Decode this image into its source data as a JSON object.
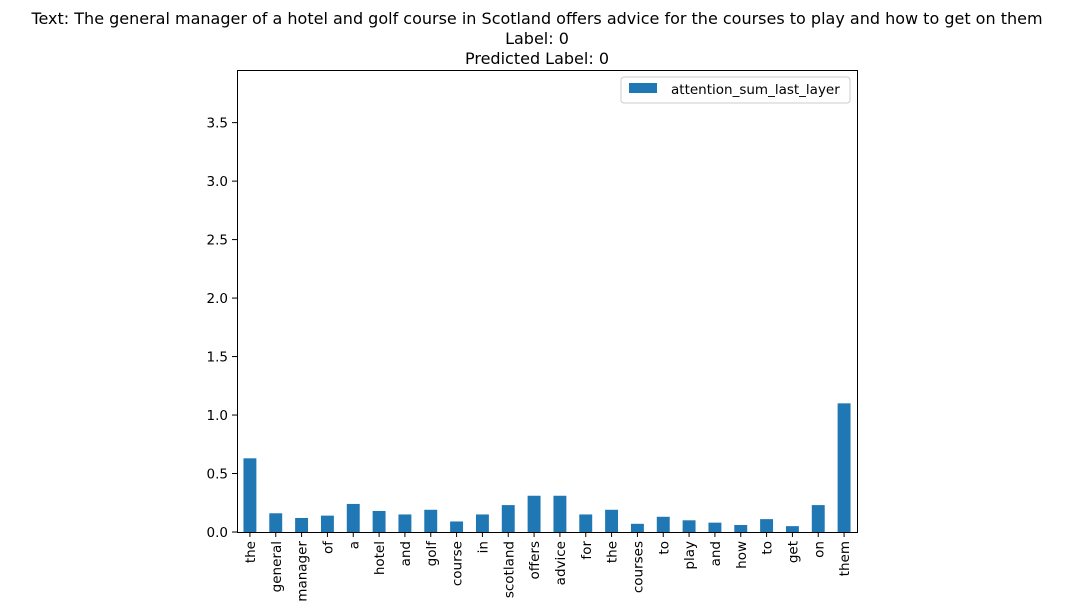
{
  "chart_data": {
    "type": "bar",
    "title_lines": [
      "Text: The general manager of a hotel and golf course in Scotland offers advice for the courses to play and how to get on them",
      "Label: 0",
      "Predicted Label: 0"
    ],
    "xlabel": "",
    "ylabel": "",
    "ylim": [
      0,
      3.95
    ],
    "yticks": [
      "0.0",
      "0.5",
      "1.0",
      "1.5",
      "2.0",
      "2.5",
      "3.0",
      "3.5"
    ],
    "ytick_values": [
      0,
      0.5,
      1.0,
      1.5,
      2.0,
      2.5,
      3.0,
      3.5
    ],
    "categories": [
      "the",
      "general",
      "manager",
      "of",
      "a",
      "hotel",
      "and",
      "golf",
      "course",
      "in",
      "scotland",
      "offers",
      "advice",
      "for",
      "the",
      "courses",
      "to",
      "play",
      "and",
      "how",
      "to",
      "get",
      "on",
      "them"
    ],
    "series": [
      {
        "name": "attention_sum_last_layer",
        "color": "#1f77b4",
        "values": [
          0.63,
          0.16,
          0.12,
          0.14,
          0.24,
          0.18,
          0.15,
          0.19,
          0.09,
          0.15,
          0.23,
          0.31,
          0.31,
          0.15,
          0.19,
          0.07,
          0.13,
          0.1,
          0.08,
          0.06,
          0.11,
          0.05,
          0.23,
          1.1
        ]
      }
    ],
    "legend_position": "upper right",
    "grid": false
  }
}
